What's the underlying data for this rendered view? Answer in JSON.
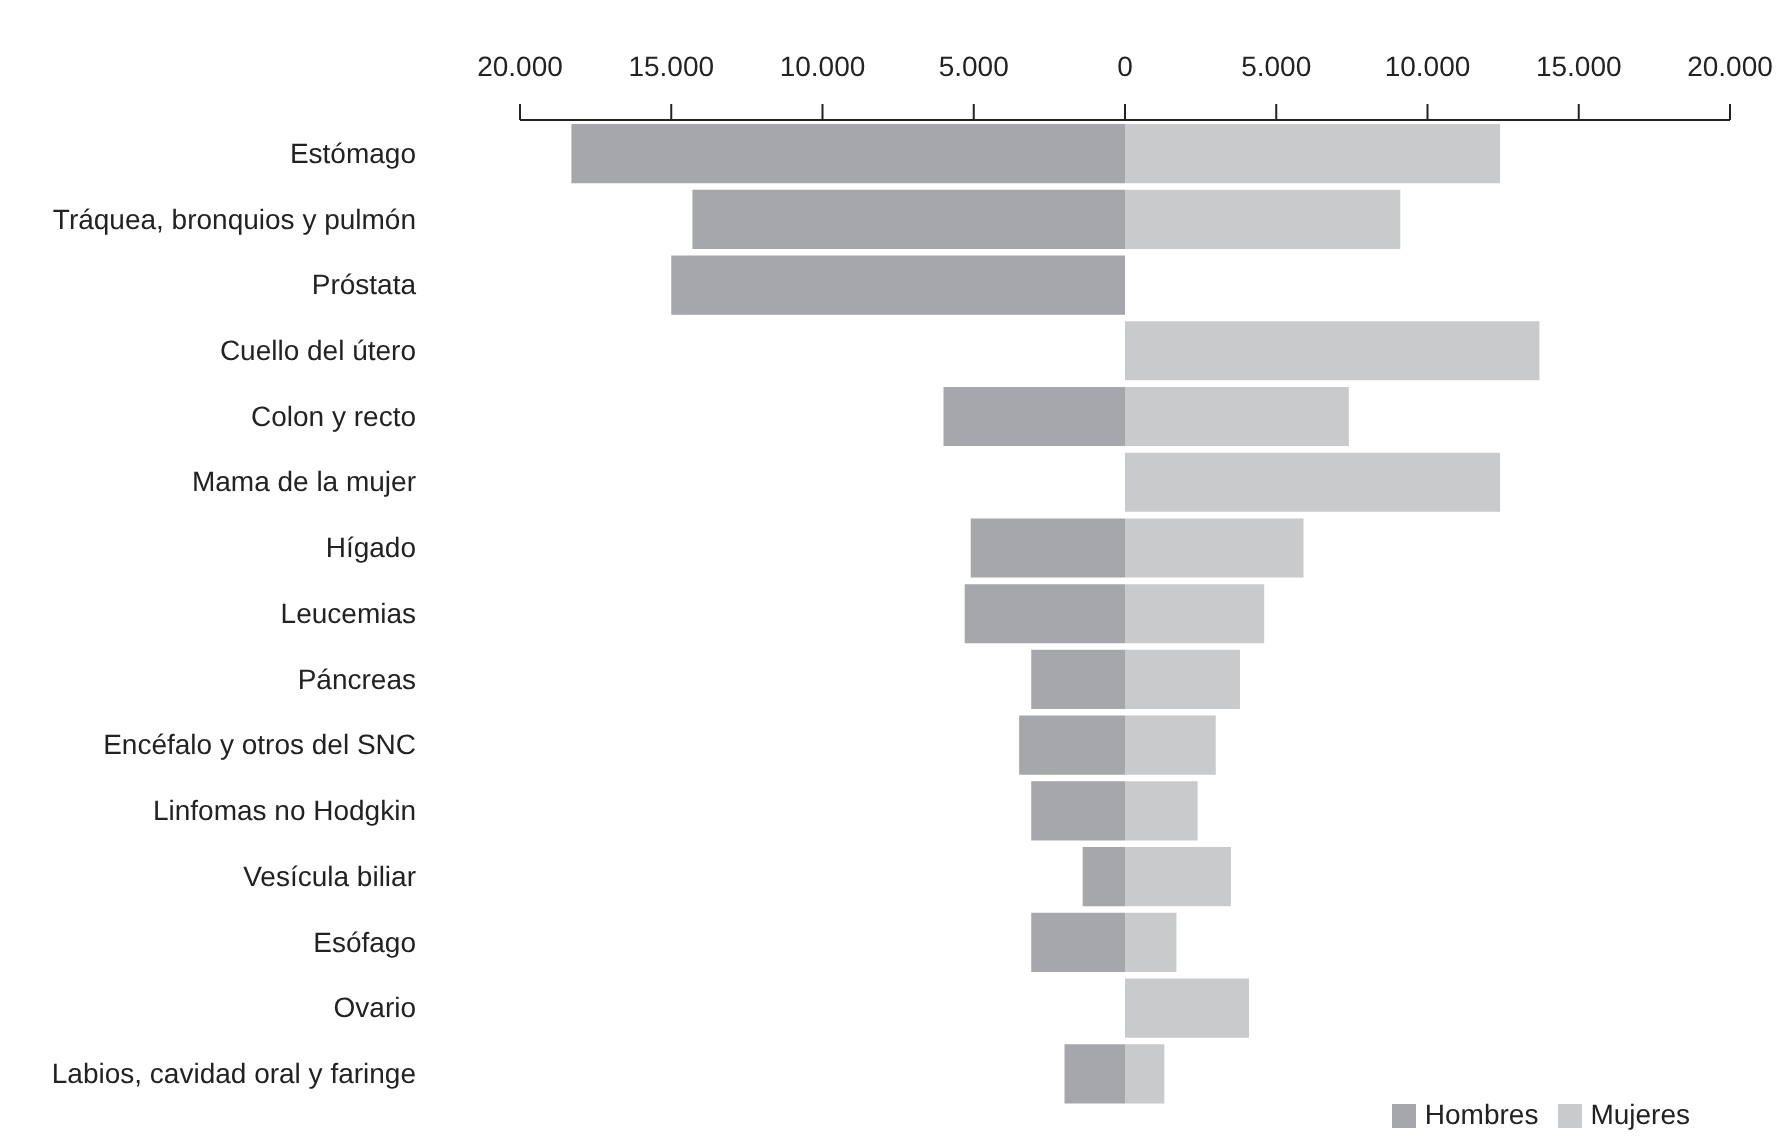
{
  "chart_data": {
    "type": "bar",
    "orientation": "horizontal",
    "stacked": true,
    "categories": [
      "Estómago",
      "Tráquea, bronquios y pulmón",
      "Próstata",
      "Cuello del útero",
      "Colon y recto",
      "Mama de la mujer",
      "Hígado",
      "Leucemias",
      "Páncreas",
      "Encéfalo y otros del SNC",
      "Linfomas no Hodgkin",
      "Vesícula biliar",
      "Esófago",
      "Ovario",
      "Labios, cavidad oral y faringe"
    ],
    "series": [
      {
        "name": "Hombres",
        "color": "#a6a7aa",
        "values": [
          -18300,
          -14300,
          -15000,
          null,
          -6000,
          null,
          -5100,
          -5300,
          -3100,
          -3500,
          -3100,
          -1400,
          -3100,
          null,
          -2000
        ]
      },
      {
        "name": "Mujeres",
        "color": "#c9cacc",
        "values": [
          12400,
          9100,
          null,
          13700,
          7400,
          12400,
          5900,
          4600,
          3800,
          3000,
          2400,
          3500,
          1700,
          4100,
          1300
        ]
      }
    ],
    "xlim": [
      -20000,
      20000
    ],
    "xticks": [
      {
        "value": -20000,
        "label": "20.000"
      },
      {
        "value": -15000,
        "label": "15.000"
      },
      {
        "value": -10000,
        "label": "10.000"
      },
      {
        "value": -5000,
        "label": "5.000"
      },
      0,
      {
        "value": 5000,
        "label": "5.000"
      },
      {
        "value": 10000,
        "label": "10.000"
      },
      {
        "value": 15000,
        "label": "15.000"
      },
      {
        "value": 20000,
        "label": "20.000"
      }
    ],
    "legend": "bottom right",
    "grid": false
  }
}
